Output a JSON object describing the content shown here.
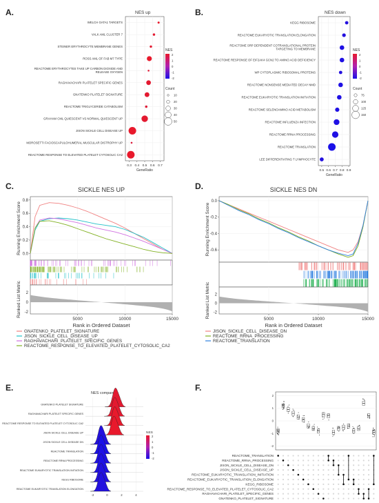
{
  "figure": {
    "panel_labels": [
      "A.",
      "B.",
      "C.",
      "D.",
      "E.",
      "F."
    ],
    "colors": {
      "nes_high": "#e8192c",
      "nes_low": "#1a10e8",
      "gsea_curve_1": "#f08080",
      "gsea_curve_2": "#20c0c8",
      "gsea_curve_3": "#d070e0",
      "gsea_curve_4": "#80b020",
      "ridge_up": "#e8192c",
      "ridge_down": "#3a1ae0",
      "metric_fill": "#b0b0b0"
    }
  },
  "chart_data": [
    {
      "panel": "A.",
      "type": "scatter",
      "title": "NES up",
      "xlabel": "GeneRatio",
      "ylabel": "",
      "x_ticks": [
        "0.3",
        "0.4",
        "0.5",
        "0.6",
        "0.7"
      ],
      "xlim": [
        0.25,
        0.75
      ],
      "legend_nes_title": "NES",
      "legend_nes_ticks": [
        "2",
        "1",
        "0",
        "-1",
        "-2"
      ],
      "legend_count_title": "Count",
      "legend_count_ticks": [
        "10",
        "20",
        "30",
        "40",
        "50"
      ],
      "categories": [
        "WELCH GATA1 TARGETS",
        "VALK AML CLUSTER 7",
        "STEINER ERYTHROCYTE MEMBRANE GENES",
        "ROSS AML OF FAB M7 TYPE",
        "REACTOME ERYTHROCYTES TAKE UP CARBON DIOXIDE AND RELEASE OXYGEN",
        "RAGHAVACHARI PLATELET SPECIFIC GENES",
        "GNATENKO PLATELET SIGNATURE",
        "REACTOME TRIGLYCERIDE CATABOLISM",
        "GRAHAM CML QUIESCENT VS NORMAL QUIESCENT UP",
        "JISON SICKLE CELL DISEASE UP",
        "MOROSETTI FACIOSCAPULOHUMERAL MUSCULAR DISTROPHY UP",
        "REACTOME RESPONSE TO ELEVATED PLATELET CYTOSOLIC CA2"
      ],
      "gene_ratio": [
        0.68,
        0.62,
        0.58,
        0.56,
        0.55,
        0.55,
        0.53,
        0.52,
        0.5,
        0.34,
        0.33,
        0.32
      ],
      "count": [
        12,
        14,
        14,
        32,
        10,
        30,
        30,
        14,
        42,
        50,
        10,
        50
      ],
      "nes": [
        2.2,
        2.1,
        2.1,
        2.2,
        2.0,
        2.1,
        2.1,
        2.0,
        2.1,
        2.2,
        1.9,
        2.2
      ]
    },
    {
      "panel": "B.",
      "type": "scatter",
      "title": "NES down",
      "xlabel": "GeneRatio",
      "ylabel": "",
      "x_ticks": [
        "0.5",
        "0.6",
        "0.7",
        "0.8",
        "0.9"
      ],
      "xlim": [
        0.45,
        0.92
      ],
      "legend_nes_title": "NES",
      "legend_nes_ticks": [
        "2",
        "1",
        "0",
        "-1",
        "-2"
      ],
      "legend_count_title": "Count",
      "legend_count_ticks": [
        "75",
        "100",
        "125",
        "150"
      ],
      "categories": [
        "KEGG RIBOSOME",
        "REACTOME EUKARYOTIC TRANSLATION ELONGATION",
        "REACTOME SRP DEPENDENT COTRANSLATIONAL PROTEIN TARGETING TO MEMBRANE",
        "REACTOME RESPONSE OF EIF2AK4 GCN2 TO AMINO ACID DEFICIENCY",
        "WP CYTOPLASMIC RIBOSOMAL PROTEINS",
        "REACTOME NONSENSE MEDIATED DECAY NMD",
        "REACTOME EUKARYOTIC TRANSLATION INITIATION",
        "REACTOME SELENOAMINO ACID METABOLISM",
        "REACTOME INFLUENZA INFECTION",
        "REACTOME RRNA PROCESSING",
        "REACTOME TRANSLATION",
        "LEE DIFFERENTIATING T LYMPHOCYTE"
      ],
      "gene_ratio": [
        0.87,
        0.83,
        0.8,
        0.8,
        0.78,
        0.78,
        0.76,
        0.73,
        0.72,
        0.7,
        0.65,
        0.5
      ],
      "count": [
        80,
        85,
        100,
        100,
        80,
        100,
        100,
        95,
        120,
        130,
        150,
        90
      ],
      "nes": [
        -2.0,
        -2.0,
        -2.1,
        -2.1,
        -2.0,
        -2.1,
        -2.1,
        -2.1,
        -2.1,
        -2.1,
        -2.2,
        -2.0
      ]
    },
    {
      "panel": "C.",
      "type": "line",
      "title": "SICKLE NES UP",
      "ylabel": "Running Enrichment Score",
      "ylabel2": "Ranked List Metric",
      "xlabel": "Rank in Ordered Dataset",
      "ylim": [
        -0.1,
        0.85
      ],
      "y_ticks": [
        "0.0",
        "0.2",
        "0.4",
        "0.6",
        "0.8"
      ],
      "x_ticks": [
        "5000",
        "10000",
        "15000"
      ],
      "metric_ticks": [
        "2",
        "0",
        "-2"
      ],
      "x": [
        0,
        500,
        1000,
        2000,
        3000,
        4000,
        5000,
        6000,
        7000,
        8000,
        9000,
        10000,
        11000,
        12000,
        13000,
        14000,
        15000
      ],
      "series": [
        {
          "name": "GNATENKO_PLATELET_SIGNATURE",
          "values": [
            0,
            0.55,
            0.72,
            0.76,
            0.75,
            0.72,
            0.68,
            0.63,
            0.57,
            0.51,
            0.45,
            0.38,
            0.3,
            0.22,
            0.14,
            0.06,
            0.0
          ]
        },
        {
          "name": "JISON_SICKLE_CELL_DISEASE_UP",
          "values": [
            0,
            0.35,
            0.48,
            0.52,
            0.53,
            0.52,
            0.5,
            0.47,
            0.44,
            0.42,
            0.4,
            0.36,
            0.3,
            0.24,
            0.16,
            0.08,
            0.0
          ]
        },
        {
          "name": "RAGHAVACHARI_PLATELET_SPECIFIC_GENES",
          "values": [
            0,
            0.38,
            0.5,
            0.53,
            0.52,
            0.49,
            0.46,
            0.42,
            0.38,
            0.35,
            0.32,
            0.28,
            0.23,
            0.18,
            0.12,
            0.06,
            0.0
          ]
        },
        {
          "name": "REACTOME_RESPONSE_TO_ELEVATED_PLATELET_CYTOSOLIC_CA2",
          "values": [
            0,
            0.38,
            0.48,
            0.49,
            0.46,
            0.42,
            0.37,
            0.32,
            0.27,
            0.22,
            0.18,
            0.14,
            0.1,
            0.06,
            0.03,
            0.01,
            0.0
          ]
        }
      ]
    },
    {
      "panel": "D.",
      "type": "line",
      "title": "SICKLE NES DN",
      "ylabel": "Running Enrichment Score",
      "ylabel2": "Ranked List Metric",
      "xlabel": "Rank in Ordered Dataset",
      "ylim": [
        -0.75,
        0.05
      ],
      "y_ticks": [
        "0.0",
        "-0.2",
        "-0.4",
        "-0.6"
      ],
      "x_ticks": [
        "5000",
        "10000",
        "15000"
      ],
      "metric_ticks": [
        "2",
        "0",
        "-2"
      ],
      "x": [
        0,
        1000,
        2000,
        3000,
        4000,
        5000,
        6000,
        7000,
        8000,
        9000,
        10000,
        11000,
        12000,
        13000,
        13500,
        14000,
        14500,
        15000
      ],
      "series": [
        {
          "name": "JISON_SICKLE_CELL_DISEASE_DN",
          "values": [
            0,
            -0.05,
            -0.1,
            -0.15,
            -0.2,
            -0.25,
            -0.3,
            -0.35,
            -0.4,
            -0.45,
            -0.5,
            -0.55,
            -0.6,
            -0.63,
            -0.6,
            -0.5,
            -0.3,
            0.0
          ]
        },
        {
          "name": "REACTOME_RRNA_PROCESSING",
          "values": [
            0,
            -0.05,
            -0.11,
            -0.16,
            -0.22,
            -0.27,
            -0.33,
            -0.38,
            -0.44,
            -0.49,
            -0.55,
            -0.6,
            -0.65,
            -0.69,
            -0.67,
            -0.55,
            -0.32,
            0.0
          ]
        },
        {
          "name": "REACTOME_TRANSLATION",
          "values": [
            0,
            -0.06,
            -0.12,
            -0.17,
            -0.23,
            -0.28,
            -0.34,
            -0.39,
            -0.45,
            -0.5,
            -0.55,
            -0.6,
            -0.64,
            -0.67,
            -0.65,
            -0.52,
            -0.3,
            0.0
          ]
        }
      ]
    },
    {
      "panel": "E.",
      "type": "area",
      "title": "NES compare",
      "legend_title": "NES",
      "legend_ticks": [
        "2",
        "1",
        "0",
        "-1",
        "-2"
      ],
      "x_ticks": [
        "-2",
        "0",
        "2",
        "4"
      ],
      "categories": [
        "GNATENKO PLATELET SIGNATURE",
        "RAGHAVACHARI PLATELET SPECIFIC GENES",
        "REACTOME RESPONSE TO ELEVATED PLATELET CYTOSOLIC CA2",
        "JISON SICKLE CELL DISEASE UP",
        "JISON SICKLE CELL DISEASE DN",
        "REACTOME TRANSLATION",
        "REACTOME RRNA PROCESSING",
        "REACTOME EUKARYOTIC TRANSLATION INITIATION",
        "KEGG RIBOSOME",
        "REACTOME EUKARYOTIC TRANSLATION ELONGATION"
      ],
      "peak": [
        1.1,
        1.0,
        1.0,
        0.9,
        -0.9,
        -0.9,
        -0.9,
        -0.9,
        -0.9,
        -0.9
      ],
      "nes": [
        2.1,
        2.1,
        2.2,
        2.2,
        -2.0,
        -2.2,
        -2.1,
        -2.1,
        -2.0,
        -2.0
      ]
    },
    {
      "panel": "F.",
      "type": "scatter",
      "y_ticks": [
        "2",
        "1",
        "0",
        "-1",
        "-2"
      ],
      "set_labels": [
        "REACTOME_TRANSLATION",
        "REACTOME_RRNA_PROCESSING",
        "JISON_SICKLE_CELL_DISEASE_DN",
        "JISON_SICKLE_CELL_DISEASE_UP",
        "REACTOME_EUKARYOTIC_TRANSLATION_INITIATION",
        "REACTOME_EUKARYOTIC_TRANSLATION_ELONGATION",
        "KEGG_RIBOSOME",
        "REACTOME_RESPONSE_TO_ELEVATED_PLATELET_CYTOSOLIC_CA2",
        "RAGHAVACHARI_PLATELET_SPECIFIC_GENES",
        "GNATENKO_PLATELET_SIGNATURE"
      ],
      "column_medians": [
        -0.8,
        1.2,
        0.9,
        0.6,
        0.3,
        0.1,
        -0.4,
        -0.6,
        -0.8,
        0.5,
        0.4,
        -0.9,
        -0.6,
        -0.5,
        -0.4,
        -0.8,
        -0.6,
        1.4,
        0.4,
        -0.9
      ]
    }
  ]
}
